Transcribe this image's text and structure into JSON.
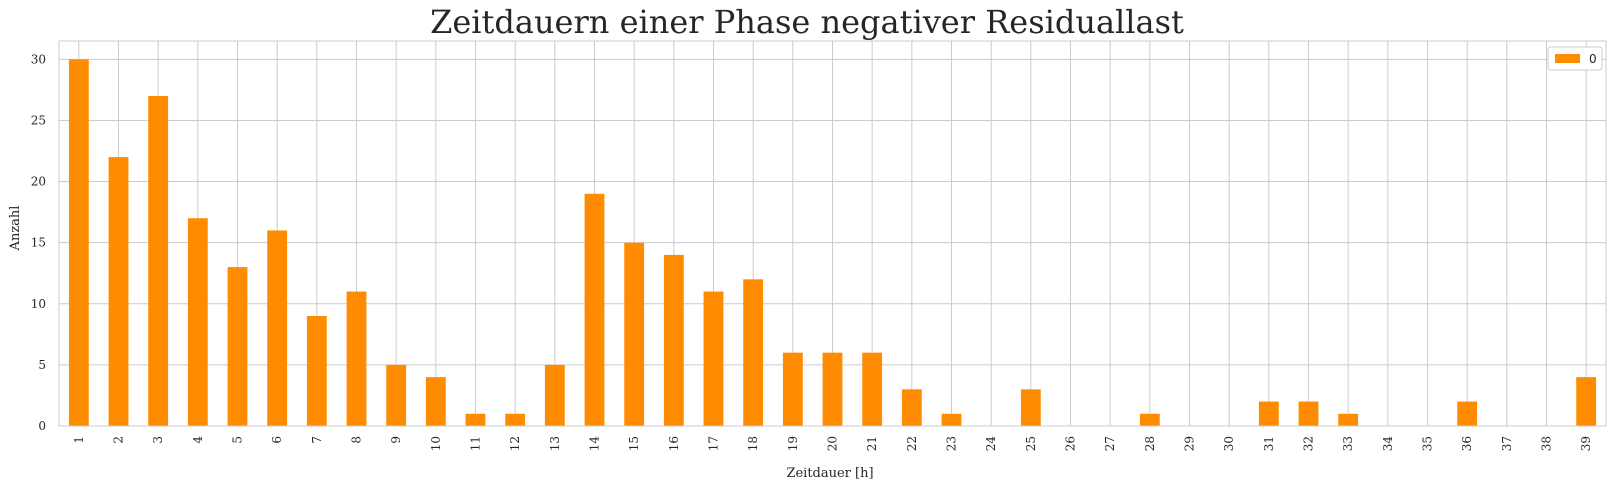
{
  "chart_data": {
    "type": "bar",
    "title": "Zeitdauern einer Phase negativer Residuallast",
    "xlabel": "Zeitdauer [h]",
    "ylabel": "Anzahl",
    "categories": [
      "1",
      "2",
      "3",
      "4",
      "5",
      "6",
      "7",
      "8",
      "9",
      "10",
      "11",
      "12",
      "13",
      "14",
      "15",
      "16",
      "17",
      "18",
      "19",
      "20",
      "21",
      "22",
      "23",
      "24",
      "25",
      "26",
      "27",
      "28",
      "29",
      "30",
      "31",
      "32",
      "33",
      "34",
      "35",
      "36",
      "37",
      "38",
      "39"
    ],
    "series": [
      {
        "name": "0",
        "color": "#ff8c00",
        "values": [
          30,
          22,
          27,
          17,
          13,
          16,
          9,
          11,
          5,
          4,
          1,
          1,
          5,
          19,
          15,
          14,
          11,
          12,
          6,
          6,
          6,
          3,
          1,
          0,
          3,
          0,
          0,
          1,
          0,
          0,
          2,
          2,
          1,
          0,
          0,
          2,
          0,
          0,
          4
        ]
      }
    ],
    "ylim": [
      0,
      31.5
    ],
    "yticks": [
      0,
      5,
      10,
      15,
      20,
      25,
      30
    ],
    "grid": true,
    "legend_position": "top-right",
    "colors": {
      "bar": "#ff8c00",
      "grid": "#cccccc",
      "axes_edge": "#cccccc",
      "text": "#262626"
    }
  }
}
